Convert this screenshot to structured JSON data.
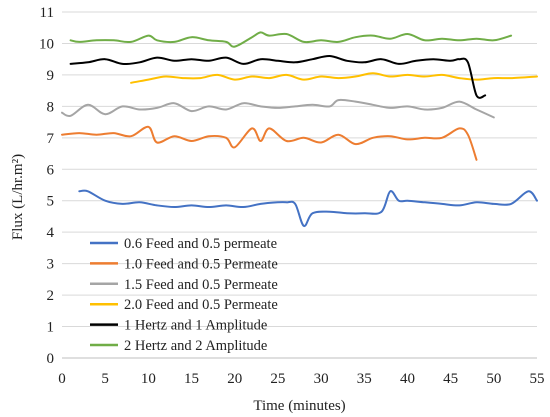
{
  "chart_data": {
    "type": "line",
    "title": "",
    "xlabel": "Time  (minutes)",
    "ylabel": "Flux  (L/hr.m²)",
    "xlim": [
      0,
      55
    ],
    "ylim": [
      0,
      11
    ],
    "xticks": [
      0,
      5,
      10,
      15,
      20,
      25,
      30,
      35,
      40,
      45,
      50,
      55
    ],
    "yticks": [
      0,
      1,
      2,
      3,
      4,
      5,
      6,
      7,
      8,
      9,
      10,
      11
    ],
    "grid": "horizontal",
    "legend_position": "lower-left",
    "series": [
      {
        "name": "0.6 Feed and 0.5 permeate",
        "color": "#4472c4",
        "x": [
          2,
          3,
          5,
          7,
          9,
          11,
          13,
          15,
          17,
          19,
          21,
          23,
          25,
          26,
          27,
          28,
          29,
          31,
          33,
          35,
          37,
          38,
          39,
          40,
          42,
          44,
          46,
          48,
          50,
          52,
          54,
          55
        ],
        "y": [
          5.3,
          5.3,
          5.0,
          4.9,
          4.95,
          4.85,
          4.8,
          4.85,
          4.8,
          4.85,
          4.8,
          4.9,
          4.95,
          4.95,
          4.9,
          4.2,
          4.6,
          4.65,
          4.6,
          4.6,
          4.65,
          5.3,
          5.0,
          5.0,
          4.95,
          4.9,
          4.85,
          4.95,
          4.9,
          4.9,
          5.3,
          5.0
        ]
      },
      {
        "name": "1.0 Feed and 0.5 Permeate",
        "color": "#ed7d31",
        "x": [
          0,
          2,
          4,
          6,
          8,
          10,
          11,
          13,
          15,
          17,
          19,
          20,
          22,
          23,
          24,
          26,
          28,
          30,
          32,
          34,
          36,
          38,
          40,
          42,
          44,
          46,
          47,
          48
        ],
        "y": [
          7.1,
          7.15,
          7.1,
          7.15,
          7.05,
          7.35,
          6.85,
          7.05,
          6.9,
          7.05,
          7.0,
          6.7,
          7.3,
          6.9,
          7.3,
          6.9,
          7.0,
          6.85,
          7.1,
          6.8,
          7.0,
          7.05,
          6.95,
          7.0,
          7.0,
          7.3,
          7.1,
          6.3
        ]
      },
      {
        "name": "1.5 Feed and 0.5 Permeate",
        "color": "#a5a5a5",
        "x": [
          0,
          1,
          3,
          5,
          7,
          9,
          11,
          13,
          15,
          17,
          19,
          21,
          23,
          25,
          27,
          29,
          31,
          32,
          34,
          36,
          38,
          40,
          42,
          44,
          46,
          48,
          50
        ],
        "y": [
          7.8,
          7.7,
          8.05,
          7.75,
          8.0,
          7.9,
          7.95,
          8.1,
          7.85,
          8.0,
          7.9,
          8.1,
          8.0,
          7.95,
          8.0,
          8.05,
          8.0,
          8.2,
          8.15,
          8.05,
          7.95,
          8.0,
          7.9,
          7.95,
          8.15,
          7.9,
          7.65
        ]
      },
      {
        "name": "2.0 Feed and 0.5 Permeate",
        "color": "#ffc000",
        "x": [
          8,
          10,
          12,
          14,
          16,
          18,
          20,
          22,
          24,
          26,
          28,
          30,
          32,
          34,
          36,
          38,
          40,
          42,
          44,
          46,
          48,
          50,
          52,
          55
        ],
        "y": [
          8.75,
          8.85,
          8.95,
          8.9,
          8.9,
          9.0,
          8.85,
          8.95,
          8.9,
          9.0,
          8.85,
          8.95,
          8.9,
          8.95,
          9.05,
          8.95,
          9.0,
          8.95,
          9.0,
          8.9,
          8.85,
          8.9,
          8.9,
          8.95
        ]
      },
      {
        "name": "1 Hertz and 1 Amplitude",
        "color": "#000000",
        "x": [
          1,
          3,
          5,
          7,
          9,
          11,
          13,
          15,
          17,
          19,
          21,
          23,
          25,
          27,
          29,
          31,
          33,
          35,
          37,
          39,
          41,
          43,
          45,
          46,
          47,
          48,
          49
        ],
        "y": [
          9.35,
          9.4,
          9.5,
          9.35,
          9.4,
          9.55,
          9.45,
          9.5,
          9.45,
          9.55,
          9.35,
          9.5,
          9.45,
          9.4,
          9.5,
          9.6,
          9.45,
          9.4,
          9.5,
          9.35,
          9.45,
          9.5,
          9.45,
          9.5,
          9.4,
          8.35,
          8.35
        ]
      },
      {
        "name": "2 Hertz and 2 Amplitude",
        "color": "#70ad47",
        "x": [
          1,
          2,
          4,
          6,
          8,
          10,
          11,
          13,
          15,
          17,
          19,
          20,
          22,
          23,
          24,
          26,
          28,
          30,
          32,
          34,
          36,
          38,
          40,
          42,
          44,
          46,
          48,
          50,
          52
        ],
        "y": [
          10.1,
          10.05,
          10.1,
          10.1,
          10.05,
          10.25,
          10.1,
          10.05,
          10.2,
          10.1,
          10.05,
          9.9,
          10.2,
          10.35,
          10.25,
          10.3,
          10.05,
          10.1,
          10.05,
          10.2,
          10.25,
          10.15,
          10.3,
          10.1,
          10.15,
          10.1,
          10.15,
          10.1,
          10.25
        ]
      }
    ]
  }
}
